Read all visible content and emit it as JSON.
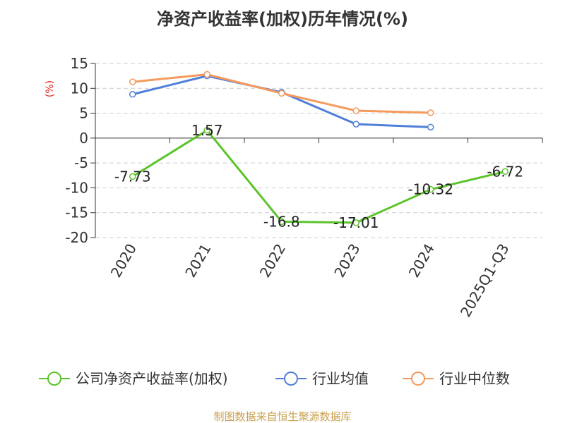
{
  "chart_data": {
    "type": "line",
    "title": "净资产收益率(加权)历年情况(%)",
    "ylabel": "(%)",
    "ylim": [
      -20,
      15
    ],
    "yticks": [
      15,
      10,
      5,
      0,
      -5,
      -10,
      -15,
      -20
    ],
    "categories": [
      "2020",
      "2021",
      "2022",
      "2023",
      "2024",
      "2025Q1-Q3"
    ],
    "grid": true,
    "legend_position": "bottom",
    "series": [
      {
        "name": "公司净资产收益率(加权)",
        "color": "#5bc42a",
        "values": [
          -7.73,
          1.57,
          -16.8,
          -17.01,
          -10.32,
          -6.72
        ],
        "labels": [
          "-7.73",
          "1.57",
          "-16.8",
          "-17.01",
          "-10.32",
          "-6.72"
        ]
      },
      {
        "name": "行业均值",
        "color": "#4f7fd8",
        "values": [
          8.8,
          12.5,
          9.2,
          2.8,
          2.2,
          null
        ]
      },
      {
        "name": "行业中位数",
        "color": "#f59a5c",
        "values": [
          11.3,
          12.8,
          9.0,
          5.5,
          5.1,
          null
        ]
      }
    ],
    "colors": {
      "ylabel": "#e0201c",
      "source": "#c8a050",
      "axis": "#333333",
      "grid": "#cccccc"
    }
  },
  "source": "制图数据来自恒生聚源数据库"
}
